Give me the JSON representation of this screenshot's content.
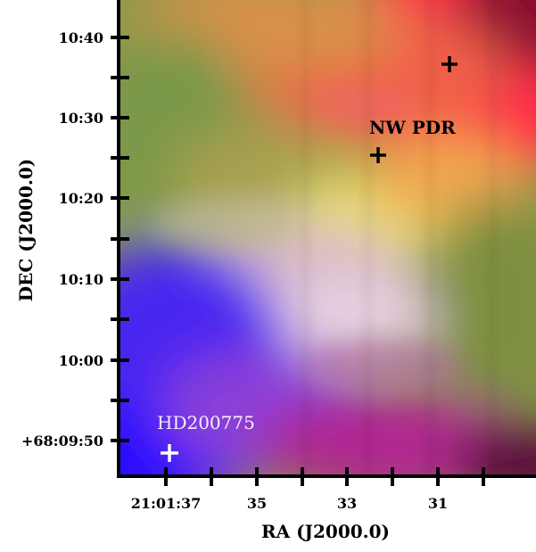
{
  "figure": {
    "y_axis_label": "DEC (J2000.0)",
    "x_axis_label": "RA (J2000.0)",
    "y_ticks": [
      "10:40",
      "10:30",
      "10:20",
      "10:10",
      "10:00",
      "+68:09:50"
    ],
    "x_ticks": [
      "21:01:37",
      "35",
      "33",
      "31"
    ],
    "annotations": {
      "nw_pdr": "NW PDR",
      "star": "HD200775"
    },
    "colors": {
      "blue_region": "#3a10ff",
      "red_region": "#ff2040",
      "green_region": "#a0b048",
      "axis": "#000000",
      "marker_light": "#ffffff",
      "marker_dark": "#000000"
    }
  }
}
